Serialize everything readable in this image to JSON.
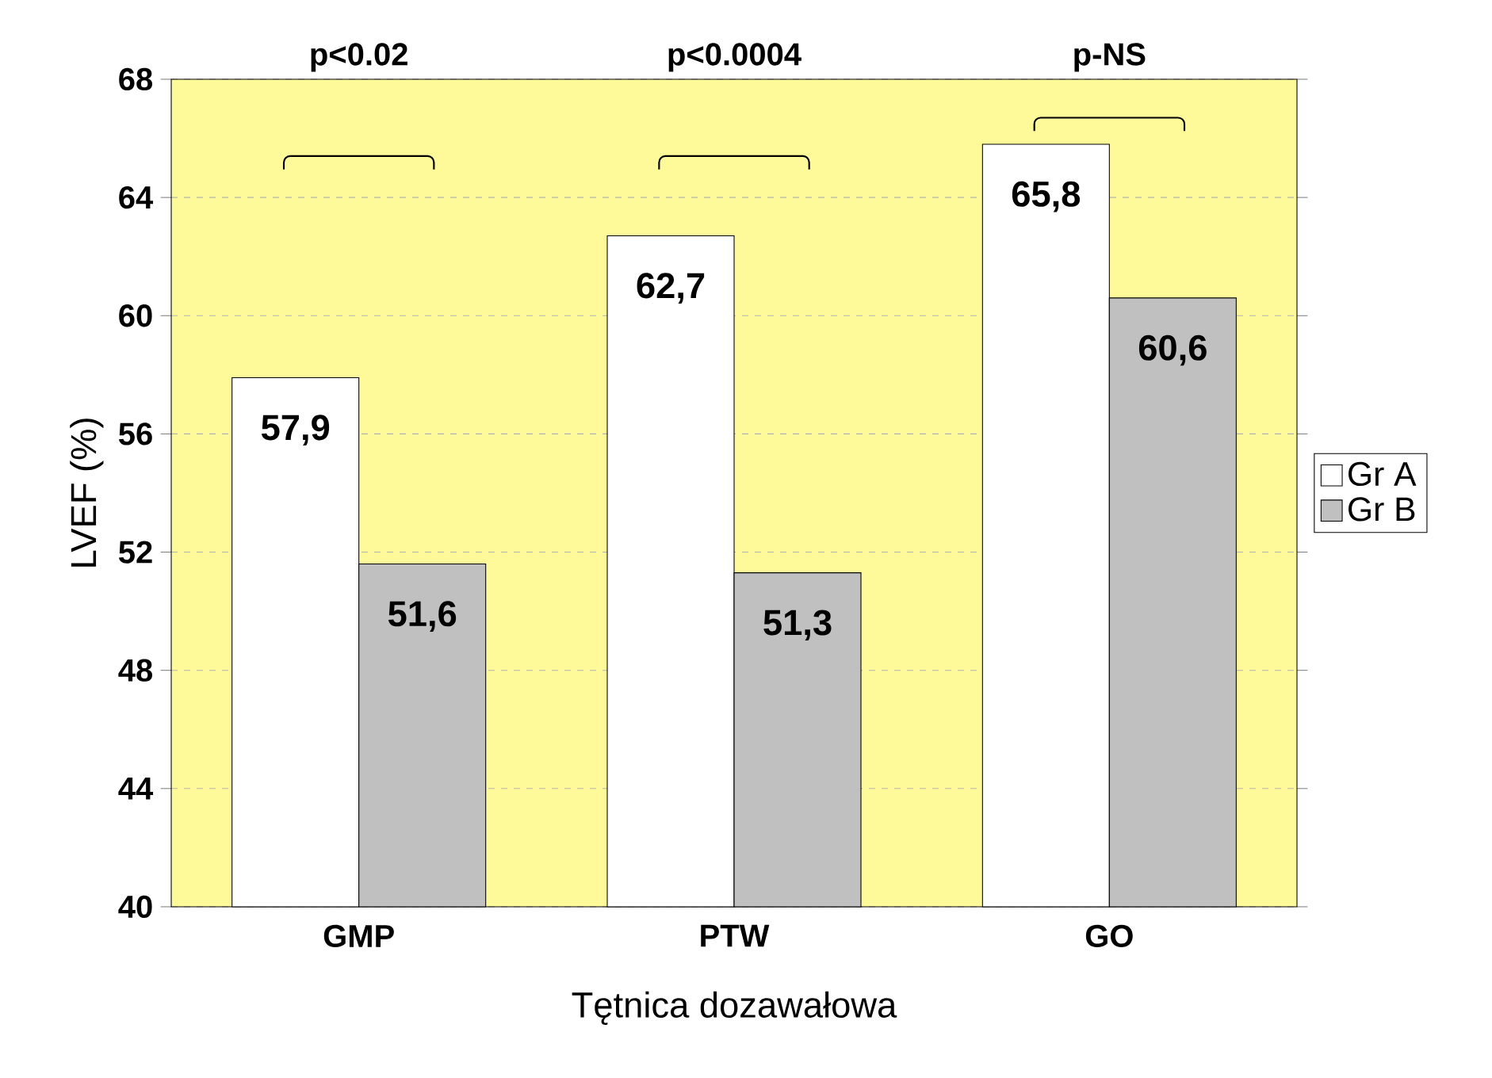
{
  "chart_data": {
    "type": "bar",
    "xlabel": "Tętnica dozawałowa",
    "ylabel": "LVEF (%)",
    "categories": [
      "GMP",
      "PTW",
      "GO"
    ],
    "series": [
      {
        "name": "Gr A",
        "color": "#ffffff",
        "values": [
          57.9,
          62.7,
          65.8
        ],
        "value_labels": [
          "57,9",
          "62,7",
          "65,8"
        ]
      },
      {
        "name": "Gr B",
        "color": "#c0c0c0",
        "values": [
          51.6,
          51.3,
          60.6
        ],
        "value_labels": [
          "51,6",
          "51,3",
          "60,6"
        ]
      }
    ],
    "ylim": [
      40,
      68
    ],
    "yticks": [
      40,
      44,
      48,
      52,
      56,
      60,
      64,
      68
    ],
    "grid": "y",
    "legend": "right",
    "annotations": [
      "p<0.02",
      "p<0.0004",
      "p-NS"
    ]
  }
}
